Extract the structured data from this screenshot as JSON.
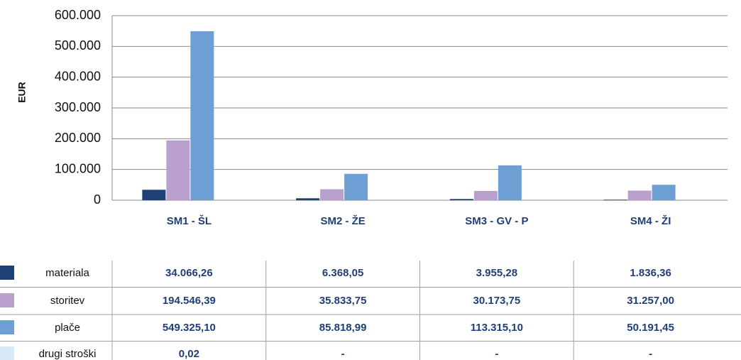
{
  "chart_data": {
    "type": "bar",
    "ylabel": "EUR",
    "categories": [
      "SM1 - ŠL",
      "SM2 - ŽE",
      "SM3 - GV - P",
      "SM4 - ŽI"
    ],
    "series": [
      {
        "name": "materiala",
        "color": "#1f3f77",
        "values": [
          34066.26,
          6368.05,
          3955.28,
          1836.36
        ],
        "value_labels": [
          "34.066,26",
          "6.368,05",
          "3.955,28",
          "1.836,36"
        ]
      },
      {
        "name": "storitev",
        "color": "#b9a0cc",
        "values": [
          194546.39,
          35833.75,
          30173.75,
          31257.0
        ],
        "value_labels": [
          "194.546,39",
          "35.833,75",
          "30.173,75",
          "31.257,00"
        ]
      },
      {
        "name": "plače",
        "color": "#6d9fd4",
        "values": [
          549325.1,
          85818.99,
          113315.1,
          50191.45
        ],
        "value_labels": [
          "549.325,10",
          "85.818,99",
          "113.315,10",
          "50.191,45"
        ]
      },
      {
        "name": "drugi stroški",
        "color": "#d8e9f8",
        "values": [
          0.02,
          null,
          null,
          null
        ],
        "value_labels": [
          "0,02",
          "-",
          "-",
          "-"
        ]
      }
    ],
    "ylim": [
      0,
      600000
    ],
    "yticks": [
      0,
      {
        "value": 100000,
        "label": "100.000"
      },
      {
        "value": 200000,
        "label": "200.000"
      },
      {
        "value": 300000,
        "label": "300.000"
      },
      {
        "value": 400000,
        "label": "400.000"
      },
      {
        "value": 500000,
        "label": "500.000"
      },
      {
        "value": 600000,
        "label": "600.000"
      }
    ],
    "grid": true
  }
}
